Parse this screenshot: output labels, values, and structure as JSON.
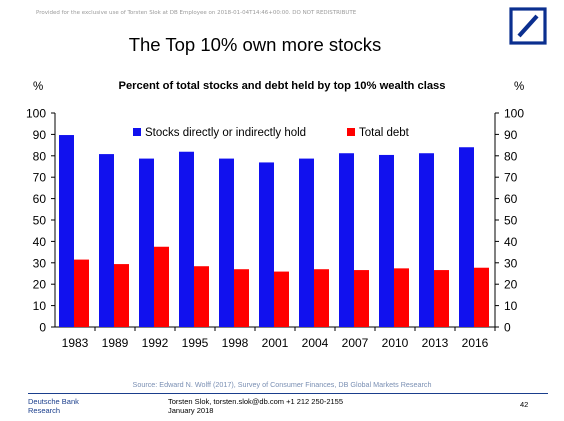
{
  "header": {
    "disclaimer": "Provided for the exclusive use of Torsten Slok at DB Employee on 2018-01-04T14:46+00:00. DO NOT REDISTRIBUTE",
    "slide_title": "The Top 10% own more stocks"
  },
  "logo": {
    "icon": "deutsche-bank-logo-icon",
    "color": "#0b2f8f"
  },
  "chart_data": {
    "type": "bar",
    "title": "Percent of total stocks and debt held by top 10% wealth class",
    "ylabel_left": "%",
    "ylabel_right": "%",
    "xlabel": "",
    "ylim": [
      0,
      100
    ],
    "yticks": [
      0,
      10,
      20,
      30,
      40,
      50,
      60,
      70,
      80,
      90,
      100
    ],
    "grid": false,
    "legend_position": "top",
    "categories": [
      "1983",
      "1989",
      "1992",
      "1995",
      "1998",
      "2001",
      "2004",
      "2007",
      "2010",
      "2013",
      "2016"
    ],
    "series": [
      {
        "name": "Stocks directly or indirectly hold",
        "color": "#1111ee",
        "values": [
          89.7,
          80.8,
          78.7,
          81.9,
          78.7,
          76.9,
          78.7,
          81.2,
          80.4,
          81.2,
          84.0
        ]
      },
      {
        "name": "Total debt",
        "color": "#ff0000",
        "values": [
          31.5,
          29.4,
          37.5,
          28.4,
          27.0,
          25.9,
          27.0,
          26.6,
          27.4,
          26.6,
          27.7
        ]
      }
    ]
  },
  "footer": {
    "source": "Source: Edward N. Wolff (2017), Survey of Consumer Finances, DB Global Markets Research",
    "brand_line1": "Deutsche Bank",
    "brand_line2": "Research",
    "contact_line1": "Torsten Slok, torsten.slok@db.com  +1 212 250-2155",
    "contact_line2": "January 2018",
    "page_number": "42"
  }
}
